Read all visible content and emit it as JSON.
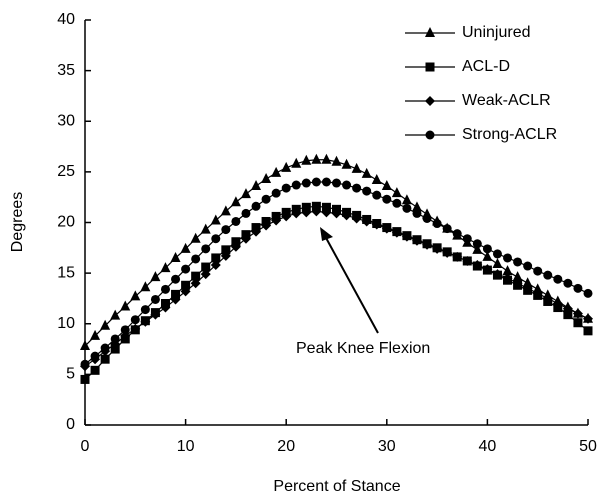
{
  "chart_data": {
    "type": "line",
    "xlabel": "Percent of Stance",
    "ylabel": "Degrees",
    "annotation": "Peak Knee Flexion",
    "x": [
      0,
      1,
      2,
      3,
      4,
      5,
      6,
      7,
      8,
      9,
      10,
      11,
      12,
      13,
      14,
      15,
      16,
      17,
      18,
      19,
      20,
      21,
      22,
      23,
      24,
      25,
      26,
      27,
      28,
      29,
      30,
      31,
      32,
      33,
      34,
      35,
      36,
      37,
      38,
      39,
      40,
      41,
      42,
      43,
      44,
      45,
      46,
      47,
      48,
      49,
      50
    ],
    "series": [
      {
        "name": "Uninjured",
        "color": "#000000",
        "marker": "triangle",
        "values": [
          7.8,
          8.8,
          9.8,
          10.8,
          11.7,
          12.7,
          13.6,
          14.6,
          15.5,
          16.5,
          17.4,
          18.4,
          19.3,
          20.2,
          21.1,
          22.0,
          22.8,
          23.6,
          24.3,
          24.9,
          25.4,
          25.8,
          26.1,
          26.2,
          26.2,
          26.0,
          25.7,
          25.3,
          24.8,
          24.2,
          23.6,
          22.9,
          22.2,
          21.5,
          20.8,
          20.1,
          19.4,
          18.7,
          18.0,
          17.3,
          16.6,
          15.9,
          15.2,
          14.6,
          14.0,
          13.4,
          12.8,
          12.2,
          11.6,
          11.0,
          10.5
        ]
      },
      {
        "name": "ACL-D",
        "color": "#000000",
        "marker": "square",
        "values": [
          4.5,
          5.4,
          6.5,
          7.5,
          8.5,
          9.4,
          10.3,
          11.1,
          12.0,
          12.9,
          13.8,
          14.7,
          15.6,
          16.5,
          17.3,
          18.1,
          18.8,
          19.5,
          20.1,
          20.6,
          21.0,
          21.3,
          21.5,
          21.6,
          21.5,
          21.3,
          21.0,
          20.7,
          20.3,
          19.9,
          19.5,
          19.1,
          18.7,
          18.3,
          17.9,
          17.5,
          17.1,
          16.6,
          16.2,
          15.7,
          15.3,
          14.8,
          14.3,
          13.8,
          13.3,
          12.8,
          12.2,
          11.6,
          10.9,
          10.1,
          9.3
        ]
      },
      {
        "name": "Weak-ACLR",
        "color": "#000000",
        "marker": "diamond",
        "values": [
          5.8,
          6.5,
          7.3,
          8.0,
          8.8,
          9.5,
          10.2,
          10.9,
          11.6,
          12.4,
          13.2,
          14.0,
          14.9,
          15.8,
          16.7,
          17.6,
          18.4,
          19.1,
          19.7,
          20.2,
          20.6,
          20.9,
          21.0,
          21.1,
          21.0,
          20.9,
          20.7,
          20.4,
          20.1,
          19.8,
          19.4,
          19.0,
          18.6,
          18.2,
          17.8,
          17.4,
          17.0,
          16.6,
          16.2,
          15.8,
          15.4,
          14.9,
          14.5,
          14.0,
          13.5,
          13.0,
          12.5,
          12.0,
          11.5,
          11.0,
          10.5
        ]
      },
      {
        "name": "Strong-ACLR",
        "color": "#000000",
        "marker": "circle",
        "values": [
          6.0,
          6.8,
          7.6,
          8.5,
          9.4,
          10.4,
          11.4,
          12.4,
          13.4,
          14.4,
          15.4,
          16.4,
          17.4,
          18.4,
          19.3,
          20.1,
          20.9,
          21.6,
          22.3,
          22.9,
          23.4,
          23.7,
          23.9,
          24.0,
          24.0,
          23.9,
          23.7,
          23.4,
          23.1,
          22.7,
          22.3,
          21.9,
          21.4,
          20.9,
          20.4,
          19.9,
          19.4,
          18.9,
          18.4,
          17.9,
          17.4,
          16.9,
          16.5,
          16.1,
          15.7,
          15.2,
          14.8,
          14.4,
          14.0,
          13.5,
          13.0
        ]
      }
    ],
    "xlim": [
      0,
      50
    ],
    "xticks": [
      0,
      10,
      20,
      30,
      40,
      50
    ],
    "ylim": [
      0,
      40
    ],
    "yticks": [
      0,
      5,
      10,
      15,
      20,
      25,
      30,
      35,
      40
    ],
    "grid": false,
    "legend": "upper right"
  }
}
